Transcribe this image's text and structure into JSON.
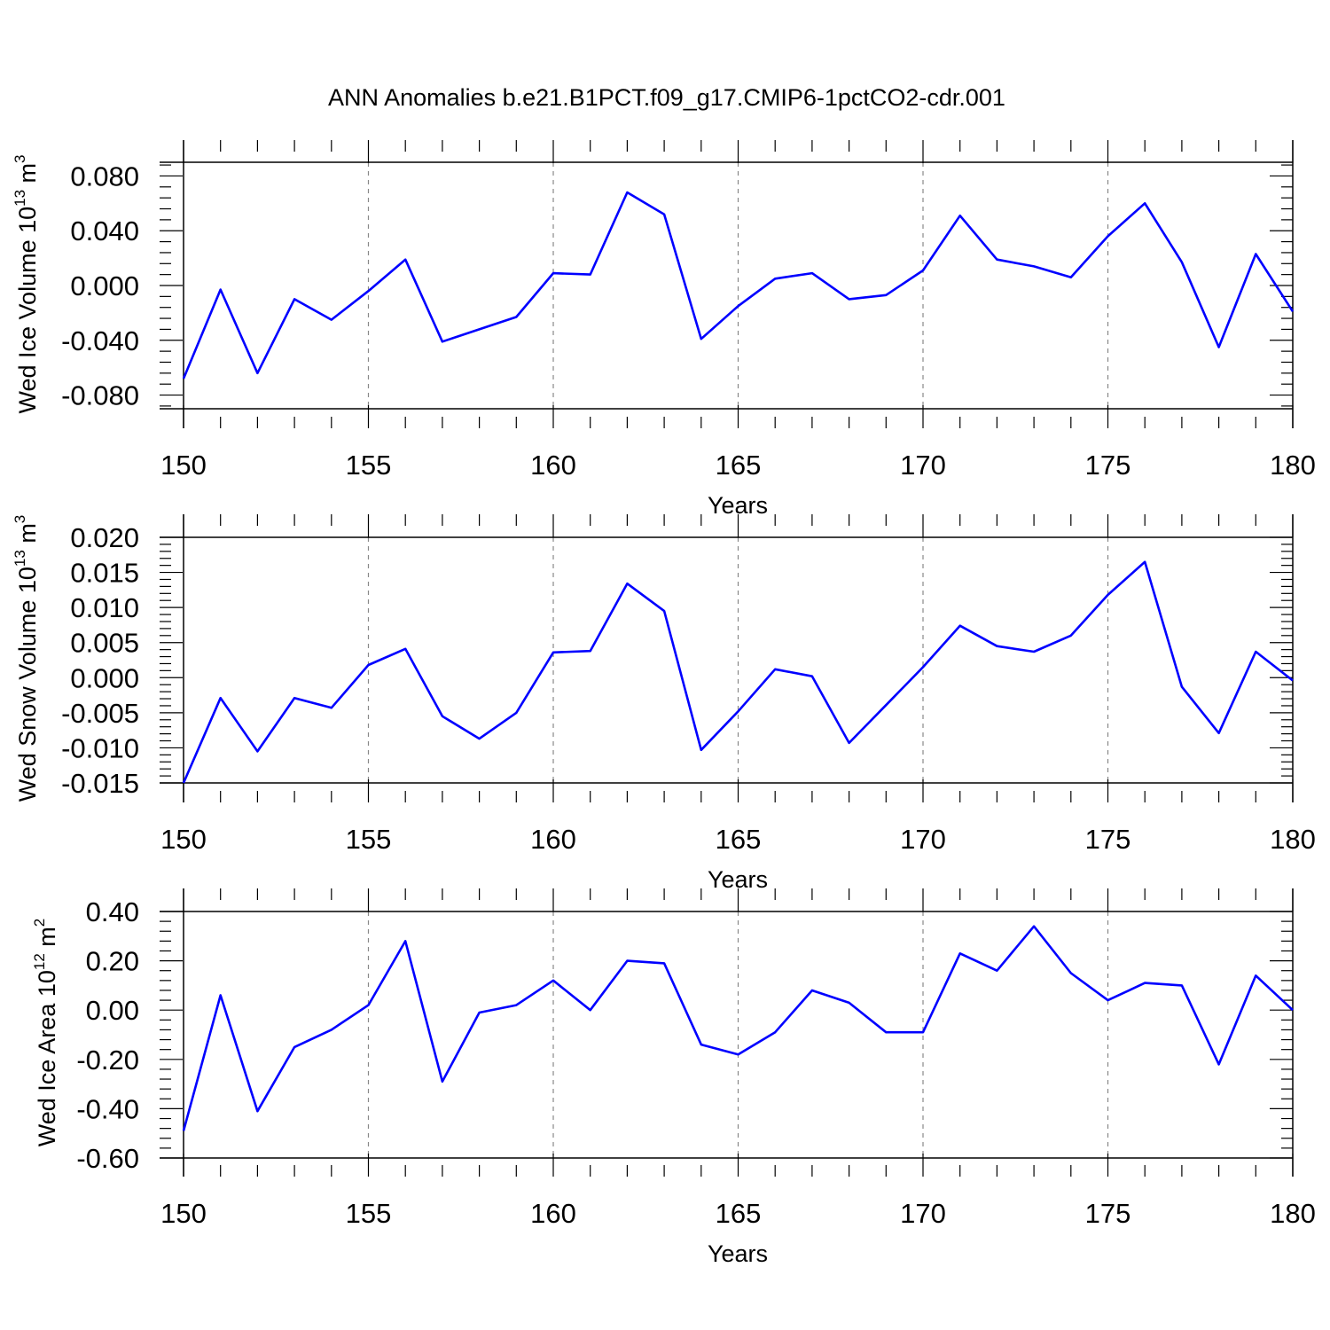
{
  "title": "ANN Anomalies b.e21.B1PCT.f09_g17.CMIP6-1pctCO2-cdr.001",
  "colors": {
    "line": "#0000ff",
    "axis": "#000000",
    "grid": "#888888"
  },
  "chart_data": [
    {
      "type": "line",
      "name": "wed-ice-volume",
      "ylabel": {
        "text": "Wed Ice Volume 10",
        "sup": "13",
        "unit": " m",
        "unit_sup": "3"
      },
      "xlabel": "Years",
      "xlim": [
        150,
        180
      ],
      "ylim": [
        -0.09,
        0.09
      ],
      "xticks": [
        "150",
        "155",
        "160",
        "165",
        "170",
        "175",
        "180"
      ],
      "yticks": [
        "-0.080",
        "-0.040",
        "0.000",
        "0.040",
        "0.080"
      ],
      "x": [
        150,
        151,
        152,
        153,
        154,
        155,
        156,
        157,
        158,
        159,
        160,
        161,
        162,
        163,
        164,
        165,
        166,
        167,
        168,
        169,
        170,
        171,
        172,
        173,
        174,
        175,
        176,
        177,
        178,
        179,
        180
      ],
      "values": [
        -0.068,
        -0.003,
        -0.064,
        -0.01,
        -0.025,
        -0.004,
        0.019,
        -0.041,
        -0.032,
        -0.023,
        0.009,
        0.008,
        0.068,
        0.052,
        -0.039,
        -0.015,
        0.005,
        0.009,
        -0.01,
        -0.007,
        0.011,
        0.051,
        0.019,
        0.014,
        0.006,
        0.036,
        0.06,
        0.017,
        -0.045,
        0.023,
        -0.019
      ],
      "series_name": "Wed Ice Volume"
    },
    {
      "type": "line",
      "name": "wed-snow-volume",
      "ylabel": {
        "text": "Wed Snow Volume 10",
        "sup": "13",
        "unit": " m",
        "unit_sup": "3"
      },
      "xlabel": "Years",
      "xlim": [
        150,
        180
      ],
      "ylim": [
        -0.015,
        0.02
      ],
      "xticks": [
        "150",
        "155",
        "160",
        "165",
        "170",
        "175",
        "180"
      ],
      "yticks": [
        "-0.015",
        "-0.010",
        "-0.005",
        "0.000",
        "0.005",
        "0.010",
        "0.015",
        "0.020"
      ],
      "x": [
        150,
        151,
        152,
        153,
        154,
        155,
        156,
        157,
        158,
        159,
        160,
        161,
        162,
        163,
        164,
        165,
        166,
        167,
        168,
        169,
        170,
        171,
        172,
        173,
        174,
        175,
        176,
        177,
        178,
        179,
        180
      ],
      "values": [
        -0.015,
        -0.0029,
        -0.0105,
        -0.0029,
        -0.0043,
        0.0018,
        0.0041,
        -0.0055,
        -0.0087,
        -0.005,
        0.0036,
        0.0038,
        0.0134,
        0.0095,
        -0.0103,
        -0.0048,
        0.0012,
        0.0002,
        -0.0093,
        -0.0039,
        0.0015,
        0.0074,
        0.0045,
        0.0037,
        0.006,
        0.0118,
        0.0165,
        -0.0013,
        -0.0079,
        0.0037,
        -0.0004
      ],
      "series_name": "Wed Snow Volume"
    },
    {
      "type": "line",
      "name": "wed-ice-area",
      "ylabel": {
        "text": "Wed Ice Area 10",
        "sup": "12",
        "unit": " m",
        "unit_sup": "2"
      },
      "xlabel": "Years",
      "xlim": [
        150,
        180
      ],
      "ylim": [
        -0.6,
        0.4
      ],
      "xticks": [
        "150",
        "155",
        "160",
        "165",
        "170",
        "175",
        "180"
      ],
      "yticks": [
        "-0.60",
        "-0.40",
        "-0.20",
        "0.00",
        "0.20",
        "0.40"
      ],
      "x": [
        150,
        151,
        152,
        153,
        154,
        155,
        156,
        157,
        158,
        159,
        160,
        161,
        162,
        163,
        164,
        165,
        166,
        167,
        168,
        169,
        170,
        171,
        172,
        173,
        174,
        175,
        176,
        177,
        178,
        179,
        180
      ],
      "values": [
        -0.49,
        0.06,
        -0.41,
        -0.15,
        -0.08,
        0.02,
        0.28,
        -0.29,
        -0.01,
        0.02,
        0.12,
        0.0,
        0.2,
        0.19,
        -0.14,
        -0.18,
        -0.09,
        0.08,
        0.03,
        -0.09,
        -0.09,
        0.23,
        0.16,
        0.34,
        0.15,
        0.04,
        0.11,
        0.1,
        -0.22,
        0.14,
        0.0
      ],
      "series_name": "Wed Ice Area"
    }
  ]
}
